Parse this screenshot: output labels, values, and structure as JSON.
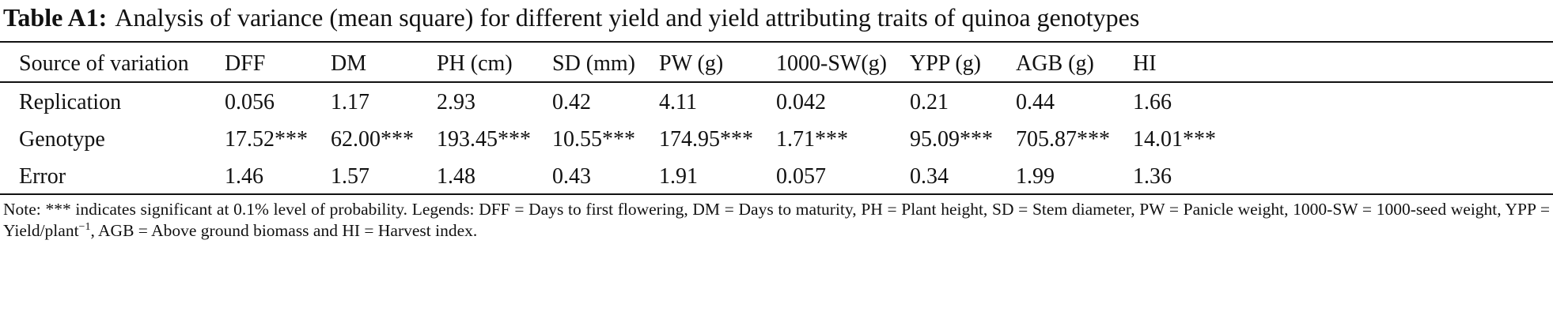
{
  "caption": {
    "label": "Table A1:",
    "title": "Analysis of variance (mean square) for different yield and yield attributing traits of quinoa genotypes"
  },
  "table": {
    "headers": [
      "Source of variation",
      "DFF",
      "DM",
      "PH (cm)",
      "SD (mm)",
      "PW (g)",
      "1000-SW(g)",
      "YPP (g)",
      "AGB (g)",
      "HI"
    ],
    "rows": [
      [
        "Replication",
        "0.056",
        "1.17",
        "2.93",
        "0.42",
        "4.11",
        "0.042",
        "0.21",
        "0.44",
        "1.66"
      ],
      [
        "Genotype",
        "17.52***",
        "62.00***",
        "193.45***",
        "10.55***",
        "174.95***",
        "1.71***",
        "95.09***",
        "705.87***",
        "14.01***"
      ],
      [
        "Error",
        "1.46",
        "1.57",
        "1.48",
        "0.43",
        "1.91",
        "0.057",
        "0.34",
        "1.99",
        "1.36"
      ]
    ]
  },
  "note": {
    "text": "Note: *** indicates significant at 0.1% level of probability. Legends: DFF = Days to first flowering, DM = Days to maturity, PH = Plant height, SD = Stem diameter, PW = Panicle weight, 1000-SW = 1000-seed weight, YPP = Yield/plant",
    "superscript": "−1",
    "text_end": ", AGB = Above ground biomass and HI = Harvest index."
  }
}
